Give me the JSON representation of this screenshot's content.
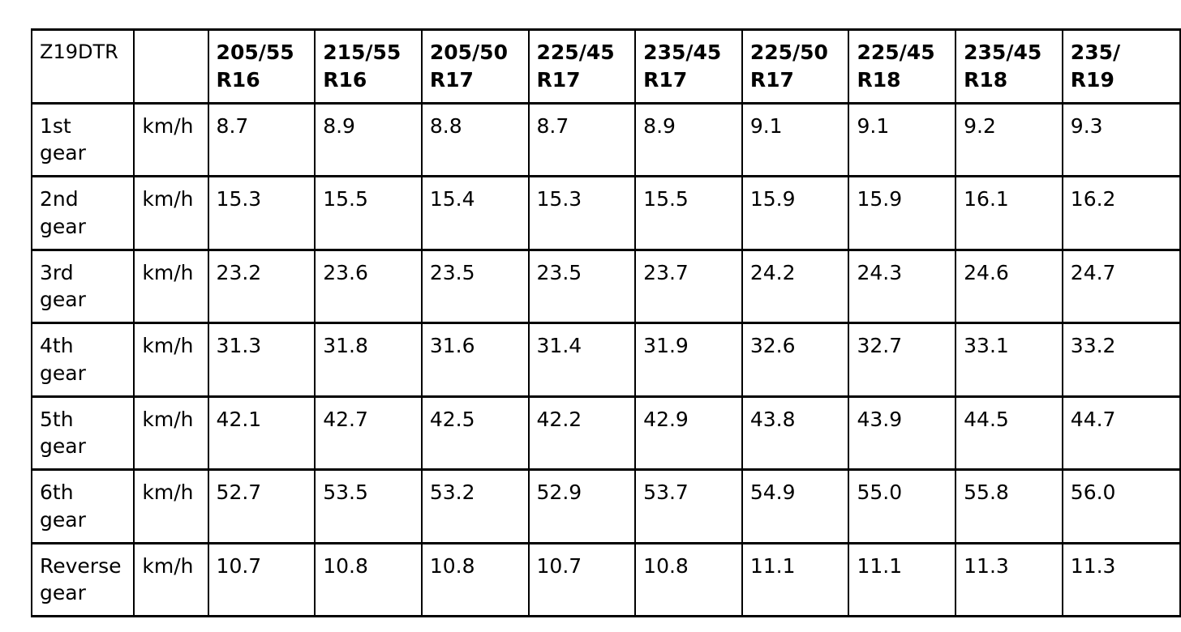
{
  "document": {
    "background": "#ffffff",
    "text_color": "#000000",
    "border_color": "#000000"
  },
  "table": {
    "model_label": "Z19DTR",
    "unit_header": "",
    "tire_columns": [
      "205/55\nR16",
      "215/55\nR16",
      "205/50\nR17",
      "225/45\nR17",
      "235/45\nR17",
      "225/50\nR17",
      "225/45\nR18",
      "235/45\nR18",
      "235/\nR19"
    ],
    "rows": [
      {
        "gear": "1st\ngear",
        "unit": "km/h",
        "values": [
          "8.7",
          "8.9",
          "8.8",
          "8.7",
          "8.9",
          "9.1",
          "9.1",
          "9.2",
          "9.3"
        ]
      },
      {
        "gear": "2nd\ngear",
        "unit": "km/h",
        "values": [
          "15.3",
          "15.5",
          "15.4",
          "15.3",
          "15.5",
          "15.9",
          "15.9",
          "16.1",
          "16.2"
        ]
      },
      {
        "gear": "3rd\ngear",
        "unit": "km/h",
        "values": [
          "23.2",
          "23.6",
          "23.5",
          "23.5",
          "23.7",
          "24.2",
          "24.3",
          "24.6",
          "24.7"
        ]
      },
      {
        "gear": "4th\ngear",
        "unit": "km/h",
        "values": [
          "31.3",
          "31.8",
          "31.6",
          "31.4",
          "31.9",
          "32.6",
          "32.7",
          "33.1",
          "33.2"
        ]
      },
      {
        "gear": "5th\ngear",
        "unit": "km/h",
        "values": [
          "42.1",
          "42.7",
          "42.5",
          "42.2",
          "42.9",
          "43.8",
          "43.9",
          "44.5",
          "44.7"
        ]
      },
      {
        "gear": "6th\ngear",
        "unit": "km/h",
        "values": [
          "52.7",
          "53.5",
          "53.2",
          "52.9",
          "53.7",
          "54.9",
          "55.0",
          "55.8",
          "56.0"
        ]
      },
      {
        "gear": "Reverse\ngear",
        "unit": "km/h",
        "values": [
          "10.7",
          "10.8",
          "10.8",
          "10.7",
          "10.8",
          "11.1",
          "11.1",
          "11.3",
          "11.3"
        ]
      }
    ]
  }
}
